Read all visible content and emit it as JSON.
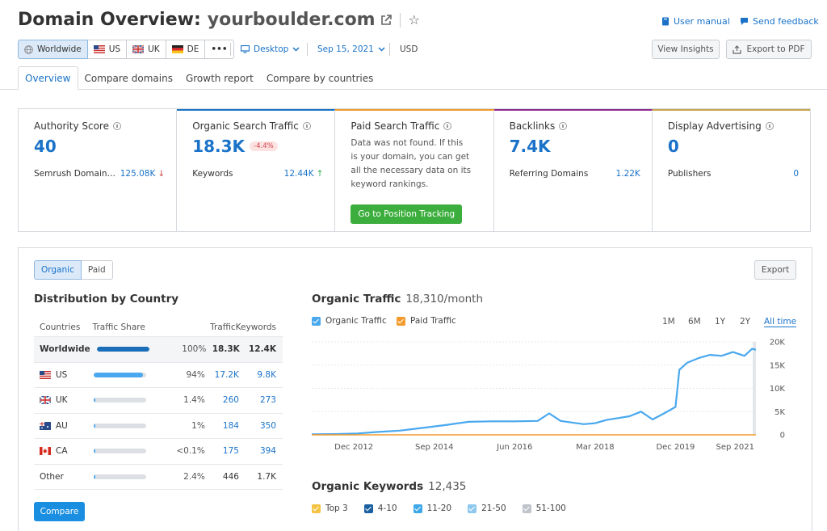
{
  "header": {
    "title_prefix": "Domain Overview:",
    "domain": "yourboulder.com",
    "user_manual": "User manual",
    "send_feedback": "Send feedback",
    "view_insights": "View Insights",
    "export_pdf": "Export to PDF"
  },
  "databases": {
    "worldwide": "Worldwide",
    "us": "US",
    "uk": "UK",
    "de": "DE",
    "more": "•••"
  },
  "filters": {
    "device": "Desktop",
    "date": "Sep 15, 2021",
    "currency": "USD"
  },
  "tabs": [
    "Overview",
    "Compare domains",
    "Growth report",
    "Compare by countries"
  ],
  "cards": {
    "authority": {
      "title": "Authority Score",
      "value": "40",
      "label": "Semrush Domain…",
      "sub_value": "125.08K"
    },
    "organic": {
      "title": "Organic Search Traffic",
      "value": "18.3K",
      "change": "-4.4%",
      "label": "Keywords",
      "sub_value": "12.44K"
    },
    "paid": {
      "title": "Paid Search Traffic",
      "message": "Data was not found. If this is your domain, you can get all the necessary data on its keyword rankings.",
      "button": "Go to Position Tracking"
    },
    "backlinks": {
      "title": "Backlinks",
      "value": "7.4K",
      "label": "Referring Domains",
      "sub_value": "1.22K"
    },
    "display": {
      "title": "Display Advertising",
      "value": "0",
      "label": "Publishers",
      "sub_value": "0"
    }
  },
  "panel": {
    "toggle_organic": "Organic",
    "toggle_paid": "Paid",
    "export": "Export",
    "distribution_title": "Distribution by Country",
    "compare": "Compare"
  },
  "country_table": {
    "headers": [
      "Countries",
      "Traffic Share",
      "Traffic",
      "Keywords"
    ],
    "rows": [
      {
        "country": "Worldwide",
        "share_label": "100%",
        "share": 1.0,
        "traffic": "18.3K",
        "keywords": "12.4K",
        "bar_color": "#1a6fb8"
      },
      {
        "country": "US",
        "share_label": "94%",
        "share": 0.94,
        "traffic": "17.2K",
        "keywords": "9.8K",
        "bar_color": "#4aa8ee"
      },
      {
        "country": "UK",
        "share_label": "1.4%",
        "share": 0.014,
        "traffic": "260",
        "keywords": "273",
        "bar_color": "#4aa8ee"
      },
      {
        "country": "AU",
        "share_label": "1%",
        "share": 0.01,
        "traffic": "184",
        "keywords": "350",
        "bar_color": "#4aa8ee"
      },
      {
        "country": "CA",
        "share_label": "<0.1%",
        "share": 0.001,
        "traffic": "175",
        "keywords": "394",
        "bar_color": "#4aa8ee"
      },
      {
        "country": "Other",
        "share_label": "2.4%",
        "share": 0.024,
        "traffic": "446",
        "keywords": "1.7K",
        "bar_color": "#4aa8ee"
      }
    ]
  },
  "traffic_chart": {
    "title": "Organic Traffic",
    "subtitle": "18,310/month",
    "legend_organic": "Organic Traffic",
    "legend_paid": "Paid Traffic",
    "ranges": [
      "1M",
      "6M",
      "1Y",
      "2Y",
      "All time"
    ],
    "active_range": "All time"
  },
  "keywords_section": {
    "title": "Organic Keywords",
    "value": "12,435",
    "legend": [
      "Top 3",
      "4-10",
      "11-20",
      "21-50",
      "51-100"
    ],
    "legend_colors": [
      "#f5c342",
      "#1a5fa0",
      "#3fa8e8",
      "#8fc8ee",
      "#bfc4cb"
    ]
  },
  "colors": {
    "accent": "#1a73c8",
    "organic": "#4aa8ee",
    "paid": "#f39a2c",
    "green": "#3cae3d"
  },
  "chart_data": {
    "type": "line",
    "title": "Organic Traffic",
    "x_ticks": [
      "Dec 2012",
      "Sep 2014",
      "Jun 2016",
      "Mar 2018",
      "Dec 2019",
      "Sep 2021"
    ],
    "y_ticks": [
      "0",
      "5K",
      "10K",
      "15K",
      "20K"
    ],
    "ylim": [
      0,
      20000
    ],
    "xlim": [
      "2012-01",
      "2021-09"
    ],
    "series": [
      {
        "name": "Organic Traffic",
        "color": "#4aa8ee",
        "x": [
          "2012-01",
          "2012-07",
          "2013-01",
          "2013-06",
          "2013-12",
          "2014-06",
          "2014-12",
          "2015-06",
          "2015-12",
          "2016-06",
          "2016-12",
          "2017-03",
          "2017-06",
          "2017-12",
          "2018-03",
          "2018-06",
          "2018-12",
          "2019-03",
          "2019-06",
          "2019-09",
          "2019-12",
          "2020-01",
          "2020-03",
          "2020-06",
          "2020-09",
          "2020-12",
          "2021-03",
          "2021-06",
          "2021-08",
          "2021-09"
        ],
        "values": [
          100,
          150,
          300,
          600,
          900,
          1500,
          2100,
          2800,
          2900,
          2900,
          3000,
          4600,
          3000,
          2300,
          2500,
          3200,
          4000,
          5000,
          3300,
          4600,
          6000,
          14000,
          15500,
          16500,
          17200,
          17000,
          17800,
          17000,
          18500,
          18300
        ]
      },
      {
        "name": "Paid Traffic",
        "color": "#f39a2c",
        "x": [
          "2012-01",
          "2021-09"
        ],
        "values": [
          0,
          0
        ]
      }
    ]
  }
}
